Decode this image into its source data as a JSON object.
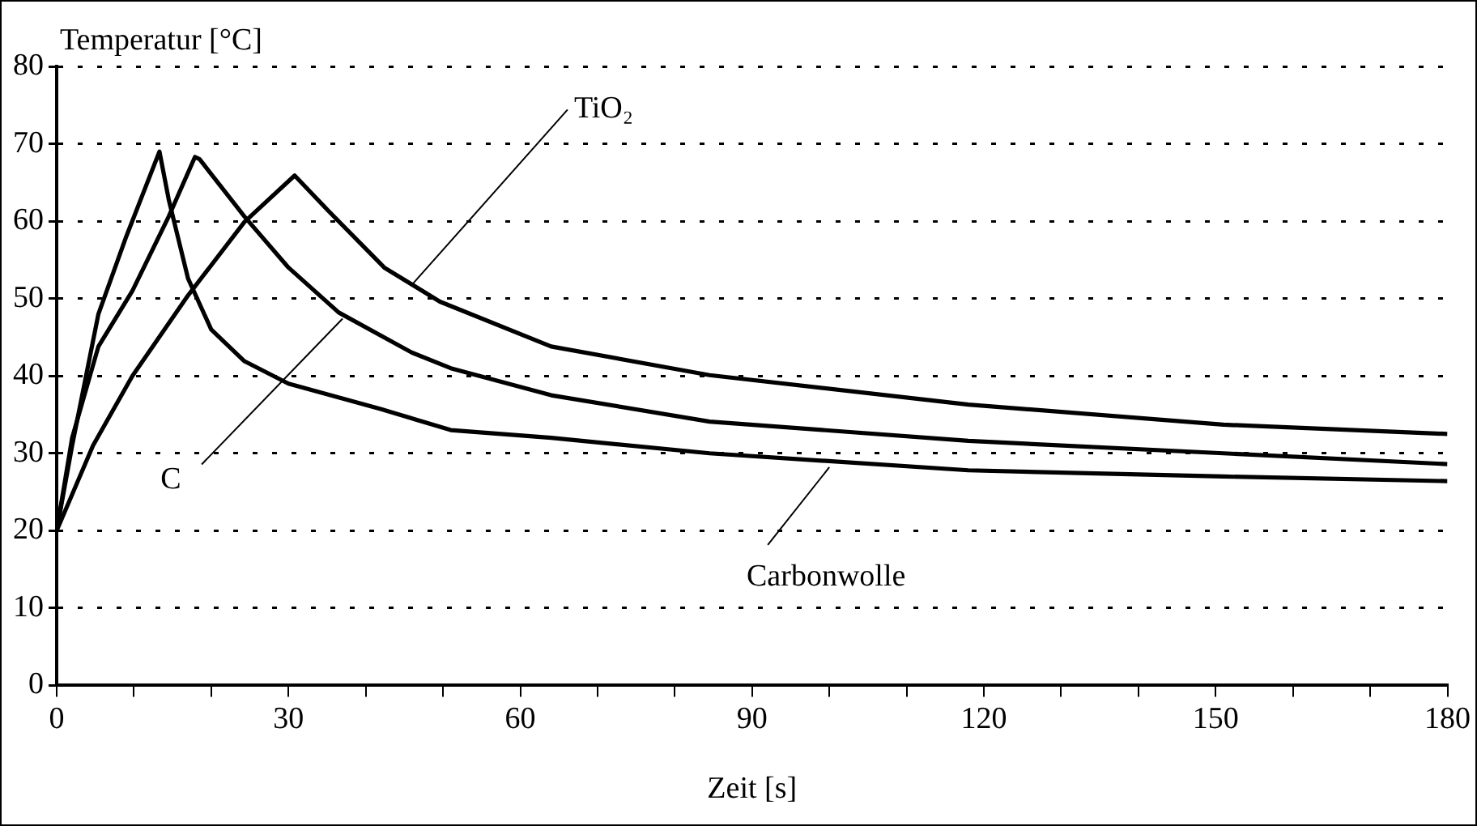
{
  "chart_data": {
    "type": "line",
    "ylabel": "Temperatur [°C]",
    "xlabel": "Zeit [s]",
    "xlim": [
      0,
      180
    ],
    "xticks": [
      0,
      {
        "value": 10,
        "label": null
      },
      {
        "value": 20,
        "label": null
      },
      30,
      {
        "value": 40,
        "label": null
      },
      {
        "value": 50,
        "label": null
      },
      60,
      {
        "value": 70,
        "label": null
      },
      {
        "value": 80,
        "label": null
      },
      90,
      {
        "value": 100,
        "label": null
      },
      {
        "value": 110,
        "label": null
      },
      120,
      {
        "value": 130,
        "label": null
      },
      {
        "value": 140,
        "label": null
      },
      150,
      {
        "value": 160,
        "label": null
      },
      {
        "value": 170,
        "label": null
      },
      180
    ],
    "ylim": [
      0,
      80
    ],
    "yticks": [
      0,
      10,
      20,
      30,
      40,
      50,
      60,
      70,
      80
    ],
    "grid": "y",
    "legend": false,
    "marker": "none",
    "line_style": "solid",
    "series": [
      {
        "color": "#000000",
        "x": [
          0,
          2,
          5.4,
          9,
          13.3,
          14.5,
          17,
          20,
          24.3,
          30,
          42,
          51,
          64,
          84.5,
          118,
          151,
          180
        ],
        "values": [
          20,
          31,
          48,
          58,
          69,
          62.8,
          52.6,
          46,
          41.9,
          39,
          35.7,
          33,
          32,
          30,
          27.8,
          27,
          26.4
        ]
      },
      {
        "color": "#000000",
        "x": [
          0,
          2,
          5.4,
          9.8,
          14.5,
          17.9,
          18.5,
          24.3,
          30,
          36.5,
          46,
          51,
          64,
          84.5,
          118,
          151,
          180
        ],
        "values": [
          20,
          32,
          43.8,
          51,
          60.6,
          68.3,
          68,
          60.6,
          54,
          48.2,
          43,
          41,
          37.5,
          34.1,
          31.6,
          30,
          28.6
        ]
      },
      {
        "color": "#000000",
        "x": [
          0,
          4.7,
          9.8,
          17,
          24.3,
          30.8,
          35.1,
          42.4,
          49.6,
          64,
          84.5,
          118,
          151,
          180
        ],
        "values": [
          20,
          31,
          40,
          50.4,
          59.9,
          65.9,
          61.4,
          54,
          49.6,
          43.8,
          40.1,
          36.3,
          33.7,
          32.5
        ]
      }
    ],
    "annotations": [
      {
        "text": "TiO₂",
        "x": 46,
        "y": 51.8
      },
      {
        "text": "C",
        "x": 37,
        "y": 47.4
      },
      {
        "text": "Carbonwolle",
        "x": 100,
        "y": 28.2
      }
    ]
  }
}
